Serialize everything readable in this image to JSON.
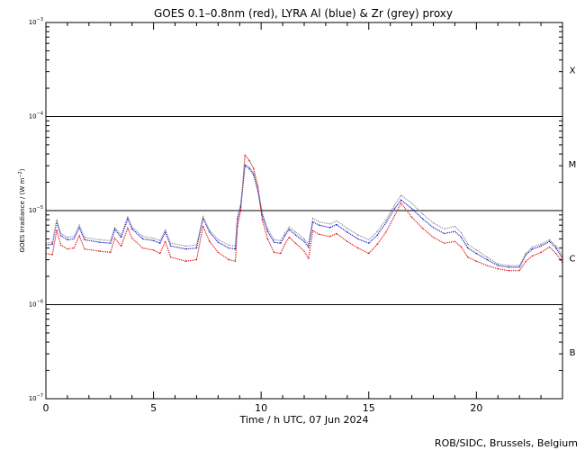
{
  "chart_data": {
    "type": "line",
    "title": "GOES 0.1–0.8nm (red), LYRA Al (blue) & Zr (grey) proxy",
    "xlabel": "Time / h UTC, 07 Jun 2024",
    "ylabel": "GOES Irradiance / (W m",
    "ylabel_sup": "−2",
    "ylabel_end": ")",
    "credit": "ROB/SIDC, Brussels, Belgium",
    "x_range": [
      0,
      24
    ],
    "x_ticks": [
      0,
      5,
      10,
      15,
      20
    ],
    "y_scale": "log",
    "y_range": [
      1e-07,
      0.001
    ],
    "y_ticks": [
      {
        "value": 1e-07,
        "base": "10",
        "exp": "−7"
      },
      {
        "value": 1e-06,
        "base": "10",
        "exp": "−6"
      },
      {
        "value": 1e-05,
        "base": "10",
        "exp": "−5"
      },
      {
        "value": 0.0001,
        "base": "10",
        "exp": "−4"
      },
      {
        "value": 0.001,
        "base": "10",
        "exp": "−3"
      }
    ],
    "class_lines": [
      1e-06,
      1e-05,
      0.0001
    ],
    "flare_classes": [
      {
        "label": "B",
        "value": 3.16e-07
      },
      {
        "label": "C",
        "value": 3.16e-06
      },
      {
        "label": "M",
        "value": 3.16e-05
      },
      {
        "label": "X",
        "value": 0.000316
      }
    ],
    "series": [
      {
        "name": "GOES 0.1–0.8nm",
        "color": "#dd0000",
        "points": [
          [
            0.0,
            3.5e-06
          ],
          [
            0.3,
            3.4e-06
          ],
          [
            0.5,
            6.2e-06
          ],
          [
            0.7,
            4.3e-06
          ],
          [
            1.0,
            3.9e-06
          ],
          [
            1.3,
            4e-06
          ],
          [
            1.55,
            5.4e-06
          ],
          [
            1.8,
            3.9e-06
          ],
          [
            2.5,
            3.7e-06
          ],
          [
            3.0,
            3.6e-06
          ],
          [
            3.2,
            5.1e-06
          ],
          [
            3.5,
            4.2e-06
          ],
          [
            3.8,
            6.5e-06
          ],
          [
            4.0,
            5.1e-06
          ],
          [
            4.5,
            4e-06
          ],
          [
            5.0,
            3.8e-06
          ],
          [
            5.3,
            3.5e-06
          ],
          [
            5.55,
            4.7e-06
          ],
          [
            5.8,
            3.2e-06
          ],
          [
            6.5,
            2.9e-06
          ],
          [
            7.0,
            3e-06
          ],
          [
            7.3,
            6.8e-06
          ],
          [
            7.6,
            4.7e-06
          ],
          [
            8.0,
            3.6e-06
          ],
          [
            8.5,
            3e-06
          ],
          [
            8.8,
            2.9e-06
          ],
          [
            8.9,
            6.8e-06
          ],
          [
            9.05,
            1e-05
          ],
          [
            9.25,
            3.9e-05
          ],
          [
            9.45,
            3.4e-05
          ],
          [
            9.65,
            2.8e-05
          ],
          [
            9.85,
            1.8e-05
          ],
          [
            10.05,
            8e-06
          ],
          [
            10.3,
            5e-06
          ],
          [
            10.6,
            3.6e-06
          ],
          [
            10.9,
            3.5e-06
          ],
          [
            11.1,
            4.4e-06
          ],
          [
            11.3,
            5.2e-06
          ],
          [
            11.6,
            4.5e-06
          ],
          [
            12.0,
            3.7e-06
          ],
          [
            12.2,
            3.1e-06
          ],
          [
            12.4,
            6.1e-06
          ],
          [
            12.7,
            5.6e-06
          ],
          [
            13.2,
            5.3e-06
          ],
          [
            13.5,
            5.7e-06
          ],
          [
            14.0,
            4.7e-06
          ],
          [
            14.5,
            4e-06
          ],
          [
            15.0,
            3.5e-06
          ],
          [
            15.4,
            4.4e-06
          ],
          [
            15.8,
            5.9e-06
          ],
          [
            16.2,
            8.8e-06
          ],
          [
            16.5,
            1.2e-05
          ],
          [
            17.0,
            8.5e-06
          ],
          [
            17.5,
            6.5e-06
          ],
          [
            18.0,
            5.2e-06
          ],
          [
            18.5,
            4.5e-06
          ],
          [
            19.0,
            4.7e-06
          ],
          [
            19.3,
            4.1e-06
          ],
          [
            19.6,
            3.2e-06
          ],
          [
            20.0,
            2.9e-06
          ],
          [
            20.5,
            2.6e-06
          ],
          [
            21.0,
            2.4e-06
          ],
          [
            21.5,
            2.3e-06
          ],
          [
            22.0,
            2.3e-06
          ],
          [
            22.3,
            2.9e-06
          ],
          [
            22.6,
            3.3e-06
          ],
          [
            23.0,
            3.6e-06
          ],
          [
            23.4,
            4.1e-06
          ],
          [
            23.7,
            3.5e-06
          ],
          [
            24.0,
            2.8e-06
          ]
        ]
      },
      {
        "name": "LYRA Al",
        "color": "#0000cc",
        "points": [
          [
            0.0,
            4.3e-06
          ],
          [
            0.3,
            4.4e-06
          ],
          [
            0.5,
            7.6e-06
          ],
          [
            0.7,
            5.4e-06
          ],
          [
            1.0,
            4.9e-06
          ],
          [
            1.3,
            5e-06
          ],
          [
            1.55,
            6.6e-06
          ],
          [
            1.8,
            4.9e-06
          ],
          [
            2.5,
            4.6e-06
          ],
          [
            3.0,
            4.5e-06
          ],
          [
            3.2,
            6.3e-06
          ],
          [
            3.5,
            5.2e-06
          ],
          [
            3.8,
            8.2e-06
          ],
          [
            4.0,
            6.4e-06
          ],
          [
            4.5,
            5e-06
          ],
          [
            5.0,
            4.8e-06
          ],
          [
            5.3,
            4.5e-06
          ],
          [
            5.55,
            5.9e-06
          ],
          [
            5.8,
            4.2e-06
          ],
          [
            6.5,
            3.9e-06
          ],
          [
            7.0,
            4e-06
          ],
          [
            7.3,
            8.3e-06
          ],
          [
            7.6,
            5.9e-06
          ],
          [
            8.0,
            4.6e-06
          ],
          [
            8.5,
            4e-06
          ],
          [
            8.8,
            3.9e-06
          ],
          [
            8.9,
            8.2e-06
          ],
          [
            9.05,
            1.1e-05
          ],
          [
            9.25,
            3e-05
          ],
          [
            9.45,
            2.8e-05
          ],
          [
            9.65,
            2.4e-05
          ],
          [
            9.85,
            1.6e-05
          ],
          [
            10.05,
            9e-06
          ],
          [
            10.3,
            6e-06
          ],
          [
            10.6,
            4.6e-06
          ],
          [
            10.9,
            4.5e-06
          ],
          [
            11.1,
            5.4e-06
          ],
          [
            11.3,
            6.3e-06
          ],
          [
            11.6,
            5.5e-06
          ],
          [
            12.0,
            4.7e-06
          ],
          [
            12.2,
            4.1e-06
          ],
          [
            12.4,
            7.6e-06
          ],
          [
            12.7,
            7e-06
          ],
          [
            13.2,
            6.6e-06
          ],
          [
            13.5,
            7.1e-06
          ],
          [
            14.0,
            5.9e-06
          ],
          [
            14.5,
            5e-06
          ],
          [
            15.0,
            4.5e-06
          ],
          [
            15.4,
            5.5e-06
          ],
          [
            15.8,
            7.4e-06
          ],
          [
            16.2,
            1.05e-05
          ],
          [
            16.5,
            1.3e-05
          ],
          [
            17.0,
            1.05e-05
          ],
          [
            17.5,
            8.2e-06
          ],
          [
            18.0,
            6.6e-06
          ],
          [
            18.5,
            5.7e-06
          ],
          [
            19.0,
            6e-06
          ],
          [
            19.3,
            5.2e-06
          ],
          [
            19.6,
            4e-06
          ],
          [
            20.0,
            3.5e-06
          ],
          [
            20.5,
            3e-06
          ],
          [
            21.0,
            2.6e-06
          ],
          [
            21.5,
            2.5e-06
          ],
          [
            22.0,
            2.5e-06
          ],
          [
            22.3,
            3.4e-06
          ],
          [
            22.6,
            3.9e-06
          ],
          [
            23.0,
            4.2e-06
          ],
          [
            23.4,
            4.7e-06
          ],
          [
            23.7,
            4e-06
          ],
          [
            24.0,
            3.1e-06
          ]
        ]
      },
      {
        "name": "LYRA Zr",
        "color": "#888888",
        "points": [
          [
            0.0,
            4.5e-06
          ],
          [
            0.3,
            4.6e-06
          ],
          [
            0.5,
            8e-06
          ],
          [
            0.7,
            5.7e-06
          ],
          [
            1.0,
            5.2e-06
          ],
          [
            1.3,
            5.3e-06
          ],
          [
            1.55,
            7e-06
          ],
          [
            1.8,
            5.2e-06
          ],
          [
            2.5,
            4.9e-06
          ],
          [
            3.0,
            4.8e-06
          ],
          [
            3.2,
            6.6e-06
          ],
          [
            3.5,
            5.5e-06
          ],
          [
            3.8,
            8.6e-06
          ],
          [
            4.0,
            6.7e-06
          ],
          [
            4.5,
            5.3e-06
          ],
          [
            5.0,
            5.1e-06
          ],
          [
            5.3,
            4.8e-06
          ],
          [
            5.55,
            6.2e-06
          ],
          [
            5.8,
            4.5e-06
          ],
          [
            6.5,
            4.2e-06
          ],
          [
            7.0,
            4.3e-06
          ],
          [
            7.3,
            8.6e-06
          ],
          [
            7.6,
            6.2e-06
          ],
          [
            8.0,
            4.9e-06
          ],
          [
            8.5,
            4.3e-06
          ],
          [
            8.8,
            4.2e-06
          ],
          [
            8.9,
            8.5e-06
          ],
          [
            9.05,
            1.15e-05
          ],
          [
            9.25,
            3.1e-05
          ],
          [
            9.45,
            2.9e-05
          ],
          [
            9.65,
            2.5e-05
          ],
          [
            9.85,
            1.7e-05
          ],
          [
            10.05,
            9.5e-06
          ],
          [
            10.3,
            6.4e-06
          ],
          [
            10.6,
            4.9e-06
          ],
          [
            10.9,
            4.8e-06
          ],
          [
            11.1,
            5.8e-06
          ],
          [
            11.3,
            6.7e-06
          ],
          [
            11.6,
            5.9e-06
          ],
          [
            12.0,
            5e-06
          ],
          [
            12.2,
            4.4e-06
          ],
          [
            12.4,
            8.3e-06
          ],
          [
            12.7,
            7.6e-06
          ],
          [
            13.2,
            7.2e-06
          ],
          [
            13.5,
            7.8e-06
          ],
          [
            14.0,
            6.5e-06
          ],
          [
            14.5,
            5.5e-06
          ],
          [
            15.0,
            4.9e-06
          ],
          [
            15.4,
            6e-06
          ],
          [
            15.8,
            8e-06
          ],
          [
            16.2,
            1.15e-05
          ],
          [
            16.5,
            1.45e-05
          ],
          [
            17.0,
            1.2e-05
          ],
          [
            17.5,
            9.2e-06
          ],
          [
            18.0,
            7.4e-06
          ],
          [
            18.5,
            6.4e-06
          ],
          [
            19.0,
            6.8e-06
          ],
          [
            19.3,
            5.8e-06
          ],
          [
            19.6,
            4.4e-06
          ],
          [
            20.0,
            3.8e-06
          ],
          [
            20.5,
            3.2e-06
          ],
          [
            21.0,
            2.7e-06
          ],
          [
            21.5,
            2.6e-06
          ],
          [
            22.0,
            2.6e-06
          ],
          [
            22.3,
            3.5e-06
          ],
          [
            22.6,
            4.1e-06
          ],
          [
            23.0,
            4.4e-06
          ],
          [
            23.4,
            4.9e-06
          ],
          [
            23.7,
            4.2e-06
          ],
          [
            24.0,
            3.3e-06
          ]
        ]
      }
    ]
  }
}
